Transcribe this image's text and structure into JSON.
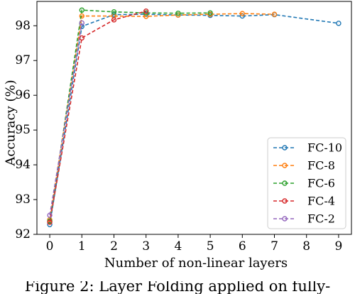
{
  "chart_data": {
    "type": "line",
    "xlabel": "Number of non-linear layers",
    "ylabel": "Accuracy (%)",
    "xlim": [
      -0.4,
      9.4
    ],
    "ylim": [
      92.0,
      98.7
    ],
    "xticks": [
      "0",
      "1",
      "2",
      "3",
      "4",
      "5",
      "6",
      "7",
      "8",
      "9"
    ],
    "yticks": [
      "92",
      "93",
      "94",
      "95",
      "96",
      "97",
      "98"
    ],
    "legend_position": "lower-right",
    "grid": false,
    "series": [
      {
        "name": "FC-10",
        "color": "#1f77b4",
        "x": [
          0,
          1,
          2,
          3,
          4,
          5,
          6,
          7,
          9
        ],
        "y": [
          92.28,
          97.98,
          98.32,
          98.33,
          98.31,
          98.3,
          98.28,
          98.32,
          98.07
        ]
      },
      {
        "name": "FC-8",
        "color": "#ff7f0e",
        "x": [
          0,
          1,
          2,
          3,
          4,
          5,
          6,
          7
        ],
        "y": [
          92.42,
          98.28,
          98.28,
          98.27,
          98.31,
          98.33,
          98.35,
          98.33
        ]
      },
      {
        "name": "FC-6",
        "color": "#2ca02c",
        "x": [
          0,
          1,
          2,
          3,
          4,
          5
        ],
        "y": [
          92.38,
          98.45,
          98.4,
          98.37,
          98.36,
          98.37
        ]
      },
      {
        "name": "FC-4",
        "color": "#d62728",
        "x": [
          0,
          1,
          2,
          3
        ],
        "y": [
          92.35,
          97.65,
          98.17,
          98.42
        ]
      },
      {
        "name": "FC-2",
        "color": "#9467bd",
        "x": [
          0,
          1
        ],
        "y": [
          92.55,
          98.08
        ]
      }
    ]
  },
  "caption": "Figure 2: Layer Folding applied on fully-"
}
